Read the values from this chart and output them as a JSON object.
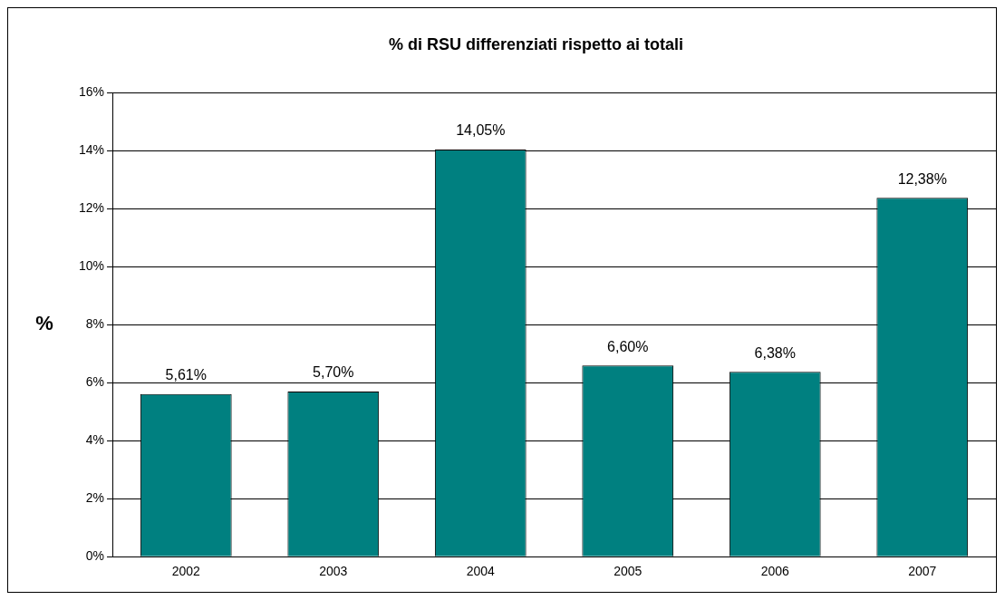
{
  "chart_data": {
    "type": "bar",
    "title": "% di RSU differenziati rispetto ai totali",
    "ylabel": "%",
    "categories": [
      "2002",
      "2003",
      "2004",
      "2005",
      "2006",
      "2007"
    ],
    "values": [
      5.61,
      5.7,
      14.05,
      6.6,
      6.38,
      12.38
    ],
    "value_labels": [
      "5,61%",
      "5,70%",
      "14,05%",
      "6,60%",
      "6,38%",
      "12,38%"
    ],
    "color": "#008080",
    "ylim": [
      0,
      16
    ],
    "yticks": [
      {
        "value": 0,
        "label": "0%"
      },
      {
        "value": 2,
        "label": "2%"
      },
      {
        "value": 4,
        "label": "4%"
      },
      {
        "value": 6,
        "label": "6%"
      },
      {
        "value": 8,
        "label": "8%"
      },
      {
        "value": 10,
        "label": "10%"
      },
      {
        "value": 12,
        "label": "12%"
      },
      {
        "value": 14,
        "label": "14%"
      },
      {
        "value": 16,
        "label": "16%"
      }
    ],
    "grid": "y",
    "legend": false
  }
}
